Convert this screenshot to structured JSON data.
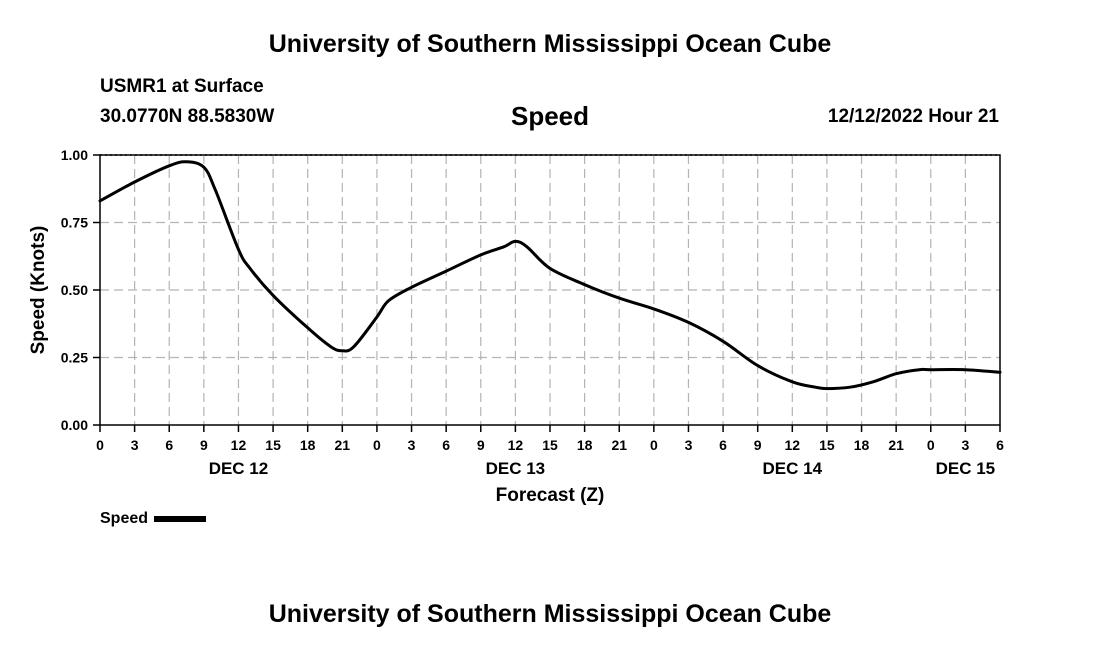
{
  "page": {
    "title_top": "University of Southern Mississippi Ocean Cube",
    "title_bottom": "University of Southern Mississippi Ocean Cube",
    "station": "USMR1 at Surface",
    "coords": "30.0770N  88.5830W",
    "date_label": "12/12/2022 Hour 21"
  },
  "colors": {
    "line": "#000000",
    "grid": "#b4b4b4",
    "background": "#ffffff"
  },
  "chart_data": {
    "type": "line",
    "title": "Speed",
    "xlabel": "Forecast (Z)",
    "ylabel": "Speed (Knots)",
    "xlim": [
      0,
      78
    ],
    "ylim": [
      0,
      1
    ],
    "grid": true,
    "y_ticks": [
      {
        "v": 0.0,
        "label": "0.00"
      },
      {
        "v": 0.25,
        "label": "0.25"
      },
      {
        "v": 0.5,
        "label": "0.50"
      },
      {
        "v": 0.75,
        "label": "0.75"
      },
      {
        "v": 1.0,
        "label": "1.00"
      }
    ],
    "x_ticks": [
      {
        "h": 0,
        "label": "0"
      },
      {
        "h": 3,
        "label": "3"
      },
      {
        "h": 6,
        "label": "6"
      },
      {
        "h": 9,
        "label": "9"
      },
      {
        "h": 12,
        "label": "12"
      },
      {
        "h": 15,
        "label": "15"
      },
      {
        "h": 18,
        "label": "18"
      },
      {
        "h": 21,
        "label": "21"
      },
      {
        "h": 24,
        "label": "0"
      },
      {
        "h": 27,
        "label": "3"
      },
      {
        "h": 30,
        "label": "6"
      },
      {
        "h": 33,
        "label": "9"
      },
      {
        "h": 36,
        "label": "12"
      },
      {
        "h": 39,
        "label": "15"
      },
      {
        "h": 42,
        "label": "18"
      },
      {
        "h": 45,
        "label": "21"
      },
      {
        "h": 48,
        "label": "0"
      },
      {
        "h": 51,
        "label": "3"
      },
      {
        "h": 54,
        "label": "6"
      },
      {
        "h": 57,
        "label": "9"
      },
      {
        "h": 60,
        "label": "12"
      },
      {
        "h": 63,
        "label": "15"
      },
      {
        "h": 66,
        "label": "18"
      },
      {
        "h": 69,
        "label": "21"
      },
      {
        "h": 72,
        "label": "0"
      },
      {
        "h": 75,
        "label": "3"
      },
      {
        "h": 78,
        "label": "6"
      }
    ],
    "day_labels": [
      {
        "h": 12,
        "label": "DEC 12"
      },
      {
        "h": 36,
        "label": "DEC 13"
      },
      {
        "h": 60,
        "label": "DEC 14"
      },
      {
        "h": 75,
        "label": "DEC 15"
      }
    ],
    "legend": {
      "label": "Speed",
      "position": "bottom-left"
    },
    "series": [
      {
        "name": "Speed",
        "x": [
          0,
          3,
          6,
          7.5,
          9,
          10,
          12,
          13,
          15,
          18,
          20,
          21,
          22,
          24,
          25,
          27,
          30,
          33,
          35,
          36,
          37,
          39,
          42,
          45,
          48,
          51,
          54,
          57,
          60,
          62,
          63,
          65,
          67,
          69,
          71,
          72,
          75,
          78
        ],
        "y": [
          0.83,
          0.9,
          0.96,
          0.975,
          0.955,
          0.87,
          0.65,
          0.58,
          0.48,
          0.36,
          0.29,
          0.275,
          0.29,
          0.4,
          0.46,
          0.51,
          0.57,
          0.63,
          0.66,
          0.68,
          0.66,
          0.58,
          0.52,
          0.47,
          0.43,
          0.38,
          0.31,
          0.22,
          0.16,
          0.14,
          0.135,
          0.14,
          0.16,
          0.19,
          0.205,
          0.205,
          0.205,
          0.195
        ]
      }
    ]
  }
}
